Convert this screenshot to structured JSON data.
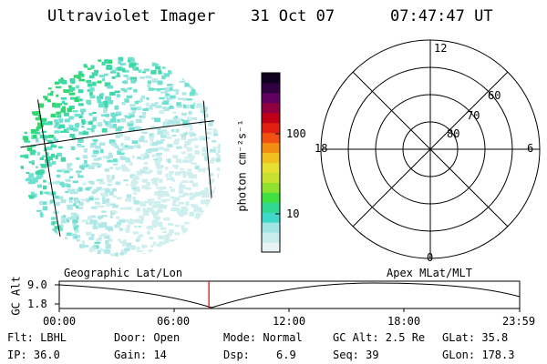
{
  "header": {
    "title": "Ultraviolet Imager",
    "date": "31 Oct 07",
    "time": "07:47:47 UT"
  },
  "colorbar": {
    "unit_label": "photon cm⁻²s⁻¹",
    "ticks": [
      {
        "label": "100",
        "value": 100
      },
      {
        "label": "10",
        "value": 10
      }
    ],
    "colors": [
      "#e8f4f4",
      "#c8ecec",
      "#a0e4e4",
      "#40d8c8",
      "#30d890",
      "#40e040",
      "#90e030",
      "#c8e030",
      "#e8e030",
      "#f0c020",
      "#f08c10",
      "#f05010",
      "#e02010",
      "#c00018",
      "#900040",
      "#600060",
      "#300040",
      "#100020"
    ]
  },
  "left_panel": {
    "caption": "Geographic Lat/Lon",
    "aurora_colors": [
      "#b0e8e8",
      "#70e0d0",
      "#40d8a8",
      "#30d870",
      "#cfeeee"
    ]
  },
  "polar_panel": {
    "caption": "Apex  MLat/MLT",
    "mlt_labels": [
      "12",
      "18",
      "6",
      "0"
    ],
    "lat_labels": [
      "60",
      "70",
      "80"
    ]
  },
  "altitude_plot": {
    "ylabel": "GC Alt",
    "yticks": [
      "9.0",
      "1.8"
    ],
    "xticks": [
      "00:00",
      "06:00",
      "12:00",
      "18:00",
      "23:59"
    ],
    "marker_time_hours": 7.8,
    "marker_color": "#e00000"
  },
  "status": {
    "flt": "Flt: LBHL",
    "ip": "IP: 36.0",
    "door": "Door: Open",
    "gain": "Gain: 14",
    "mode": "Mode: Normal",
    "dsp_label": "Dsp:",
    "dsp_value": "6.9",
    "gc_alt": "GC Alt: 2.5 Re",
    "seq": "Seq: 39",
    "glat": "GLat:  35.8",
    "glon": "GLon: 178.3"
  }
}
